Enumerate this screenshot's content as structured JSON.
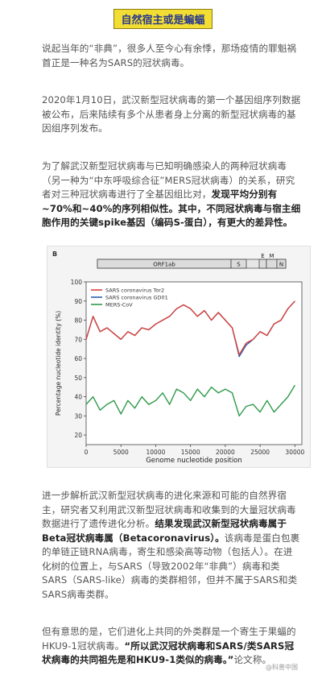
{
  "title": "自然宿主或是蝙蝠",
  "paragraphs": {
    "p1": "说起当年的“非典”，很多人至今心有余悸，那场疫情的罪魁祸首正是一种名为SARS的冠状病毒。",
    "p2": "2020年1月10日，武汉新型冠状病毒的第一个基因组序列数据被公布，后来陆续有多个从患者身上分离的新型冠状病毒的基因组序列发布。",
    "p3_plain": "为了解武汉新型冠状病毒与已知明确感染人的两种冠状病毒（另一种为“中东呼吸综合征”MERS冠状病毒）的关系，研究者对三种冠状病毒进行了全基因组比对，",
    "p3_bold": "发现平均分别有~70%和~40%的序列相似性。其中，不同冠状病毒与宿主细胞作用的关键spike基因（编码S-蛋白），有更大的差异性。",
    "p4_plain": "进一步解析武汉新型冠状病毒的进化来源和可能的自然界宿主，研究者又利用武汉新型冠状病毒和收集到的大量冠状病毒数据进行了遗传进化分析。",
    "p4_bold": "结果发现武汉新型冠状病毒属于Beta冠状病毒属（Betacoronavirus）。",
    "p4_plain2": "该病毒是蛋白包裹的单链正链RNA病毒，寄生和感染高等动物（包括人）。在进化树的位置上，与SARS（导致2002年“非典”）病毒和类SARS（SARS-like）病毒的类群相邻，但并不属于SARS和类SARS病毒类群。",
    "p5_plain": "但有意思的是，它们进化上共同的外类群是一个寄生于果蝠的HKU9-1冠状病毒。",
    "p5_bold": "“所以武汉冠状病毒和SARS/类SARS冠状病毒的共同祖先是和HKU9-1类似的病毒。”",
    "p5_tail": "论文称。"
  },
  "watermark": "@科普中国",
  "chart_data": {
    "type": "line",
    "panel_label": "B",
    "genome_bar": [
      "ORF1ab",
      "S",
      "E",
      "M",
      "N"
    ],
    "xlabel": "Genome nucleotide position",
    "ylabel": "Percentage nucleotide identity (%)",
    "xlim": [
      0,
      31000
    ],
    "ylim": [
      15,
      100
    ],
    "xticks": [
      0,
      5000,
      10000,
      15000,
      20000,
      25000,
      30000
    ],
    "yticks": [
      20,
      30,
      40,
      50,
      60,
      70,
      80,
      90,
      100
    ],
    "legend_position": "top-left",
    "colors": {
      "tor2": "#d9433a",
      "gd01": "#2f5fb3",
      "mers": "#2e9a4a"
    },
    "series": [
      {
        "name": "SARS coronavirus Tor2",
        "color": "#d9433a",
        "x": [
          0,
          1000,
          2000,
          3000,
          4000,
          5000,
          6000,
          7000,
          8000,
          9000,
          10000,
          11000,
          12000,
          13000,
          14000,
          15000,
          16000,
          17000,
          18000,
          19000,
          20000,
          21000,
          22000,
          23000,
          24000,
          25000,
          26000,
          27000,
          28000,
          29000,
          30000
        ],
        "y": [
          70,
          82,
          74,
          76,
          73,
          70,
          74,
          72,
          76,
          75,
          78,
          80,
          82,
          86,
          88,
          86,
          82,
          85,
          80,
          84,
          80,
          76,
          62,
          68,
          70,
          74,
          72,
          78,
          80,
          86,
          90
        ]
      },
      {
        "name": "SARS coronavirus GD01",
        "color": "#2f5fb3",
        "x": [
          0,
          1000,
          2000,
          3000,
          4000,
          5000,
          6000,
          7000,
          8000,
          9000,
          10000,
          11000,
          12000,
          13000,
          14000,
          15000,
          16000,
          17000,
          18000,
          19000,
          20000,
          21000,
          22000,
          23000,
          24000,
          25000,
          26000,
          27000,
          28000,
          29000,
          30000
        ],
        "y": [
          70,
          82,
          74,
          76,
          73,
          70,
          74,
          72,
          76,
          75,
          78,
          80,
          82,
          86,
          88,
          86,
          82,
          85,
          80,
          84,
          80,
          76,
          61,
          67,
          70,
          74,
          72,
          78,
          80,
          86,
          90
        ]
      },
      {
        "name": "MERS-CoV",
        "color": "#2e9a4a",
        "x": [
          0,
          1000,
          2000,
          3000,
          4000,
          5000,
          6000,
          7000,
          8000,
          9000,
          10000,
          11000,
          12000,
          13000,
          14000,
          15000,
          16000,
          17000,
          18000,
          19000,
          20000,
          21000,
          22000,
          23000,
          24000,
          25000,
          26000,
          27000,
          28000,
          29000,
          30000
        ],
        "y": [
          36,
          40,
          33,
          36,
          38,
          31,
          38,
          34,
          40,
          36,
          38,
          42,
          36,
          44,
          42,
          38,
          44,
          40,
          45,
          42,
          44,
          42,
          30,
          35,
          36,
          32,
          38,
          32,
          36,
          40,
          46
        ]
      }
    ]
  }
}
